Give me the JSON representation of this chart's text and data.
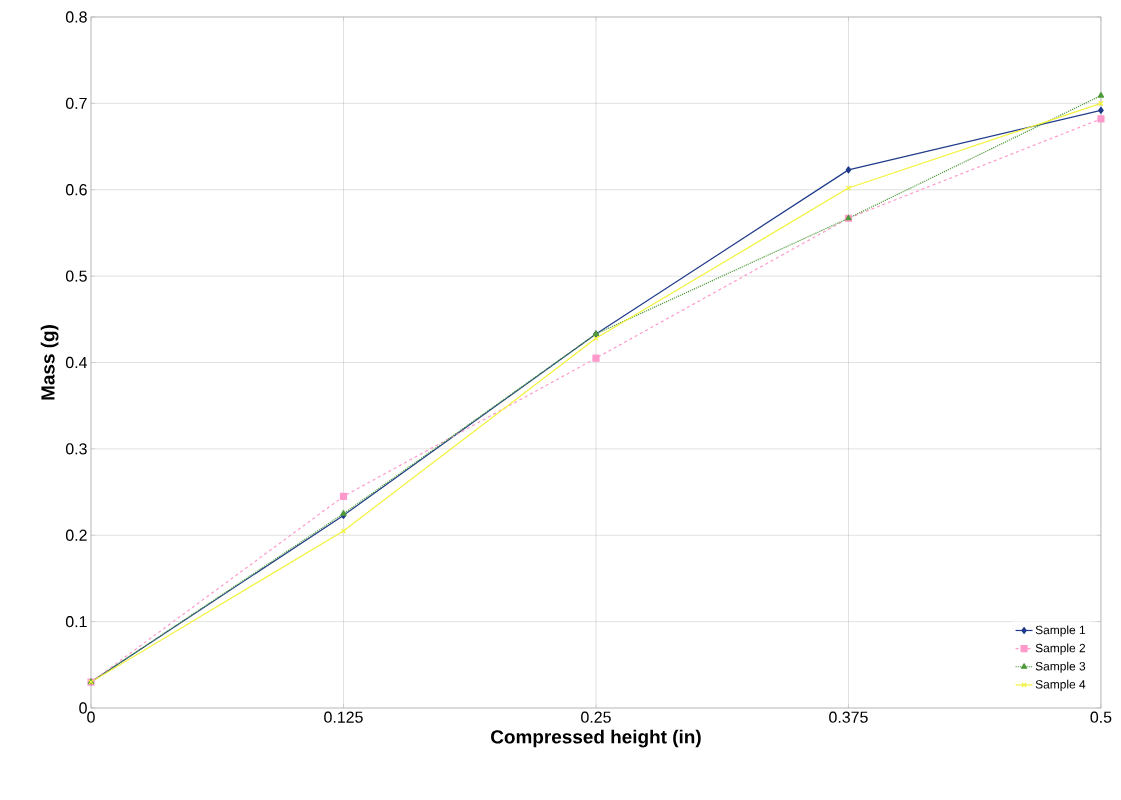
{
  "chart_data": {
    "type": "line",
    "xlabel": "Compressed height (in)",
    "ylabel": "Mass (g)",
    "x": [
      0,
      0.125,
      0.25,
      0.375,
      0.5
    ],
    "series": [
      {
        "name": "Sample 1",
        "color": "#1f3a8a",
        "marker": "diamond",
        "line_style": "solid",
        "values": [
          0.03,
          0.223,
          0.433,
          0.623,
          0.692
        ]
      },
      {
        "name": "Sample 2",
        "color": "#ff99cc",
        "marker": "square",
        "line_style": "dashed",
        "values": [
          0.03,
          0.245,
          0.405,
          0.567,
          0.682
        ]
      },
      {
        "name": "Sample 3",
        "color": "#4e9a3a",
        "marker": "triangle",
        "line_style": "dotted",
        "values": [
          0.03,
          0.225,
          0.433,
          0.567,
          0.709
        ]
      },
      {
        "name": "Sample 4",
        "color": "#f2f23a",
        "marker": "cross",
        "line_style": "solid",
        "values": [
          0.03,
          0.205,
          0.428,
          0.602,
          0.7
        ]
      }
    ],
    "xlim": [
      0,
      0.5
    ],
    "ylim": [
      0,
      0.8
    ],
    "xticks": [
      0,
      0.125,
      0.25,
      0.375,
      0.5
    ],
    "yticks": [
      0,
      0.1,
      0.2,
      0.3,
      0.4,
      0.5,
      0.6,
      0.7,
      0.8
    ],
    "grid": true,
    "legend": "bottom right"
  }
}
